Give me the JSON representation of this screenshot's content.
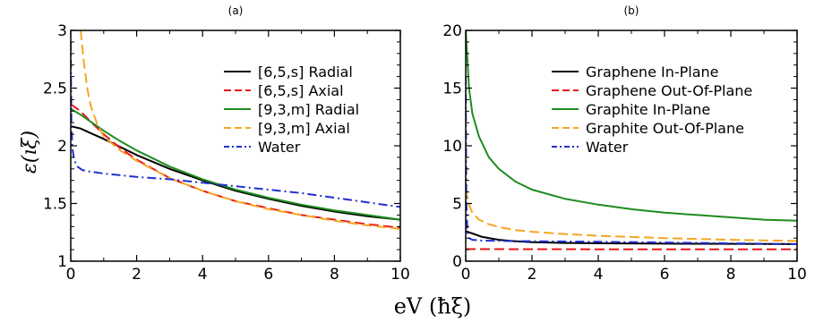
{
  "figure": {
    "ylabel": "ε(ıξ)",
    "xlabel": "eV (ħξ)"
  },
  "chart_data": [
    {
      "type": "line",
      "panel_label": "(a)",
      "xlim": [
        0,
        10
      ],
      "ylim": [
        1,
        3
      ],
      "xticks": [
        0,
        2,
        4,
        6,
        8,
        10
      ],
      "yticks": [
        1,
        1.5,
        2,
        2.5,
        3
      ],
      "ytick_labels": [
        "1",
        "1.5",
        "2",
        "2.5",
        "3"
      ],
      "legend_position": "top-right",
      "series": [
        {
          "name": "[6,5,s] Radial",
          "color": "#000000",
          "dash": "solid",
          "x": [
            0,
            0.3,
            0.6,
            1,
            1.5,
            2,
            3,
            4,
            5,
            6,
            7,
            8,
            9,
            10
          ],
          "y": [
            2.17,
            2.15,
            2.11,
            2.06,
            1.99,
            1.92,
            1.8,
            1.7,
            1.61,
            1.54,
            1.48,
            1.43,
            1.39,
            1.36
          ]
        },
        {
          "name": "[6,5,s] Axial",
          "color": "#e8191b",
          "dash": "dashed",
          "x": [
            0,
            0.3,
            0.6,
            1,
            1.5,
            2,
            3,
            4,
            5,
            6,
            7,
            8,
            9,
            10
          ],
          "y": [
            2.36,
            2.3,
            2.21,
            2.1,
            1.98,
            1.88,
            1.72,
            1.61,
            1.52,
            1.46,
            1.4,
            1.36,
            1.32,
            1.29
          ]
        },
        {
          "name": "[9,3,m] Radial",
          "color": "#1e8c1e",
          "dash": "solid",
          "x": [
            0,
            0.3,
            0.6,
            1,
            1.5,
            2,
            3,
            4,
            5,
            6,
            7,
            8,
            9,
            10
          ],
          "y": [
            2.32,
            2.27,
            2.21,
            2.13,
            2.04,
            1.96,
            1.82,
            1.71,
            1.62,
            1.55,
            1.49,
            1.44,
            1.4,
            1.36
          ]
        },
        {
          "name": "[9,3,m] Axial",
          "color": "#f5a623",
          "dash": "dashed",
          "x": [
            0.3,
            0.4,
            0.5,
            0.6,
            0.8,
            1,
            1.5,
            2,
            3,
            4,
            5,
            6,
            7,
            8,
            9,
            10
          ],
          "y": [
            3.0,
            2.72,
            2.5,
            2.35,
            2.19,
            2.08,
            1.96,
            1.87,
            1.72,
            1.61,
            1.52,
            1.45,
            1.4,
            1.35,
            1.31,
            1.28
          ]
        },
        {
          "name": "Water",
          "color": "#1f2fd0",
          "dash": "dashdot",
          "x": [
            0,
            0.02,
            0.05,
            0.1,
            0.2,
            0.35,
            0.5,
            1,
            2,
            3,
            4,
            5,
            6,
            7,
            8,
            9,
            10
          ],
          "y": [
            2.9,
            2.2,
            1.98,
            1.88,
            1.82,
            1.79,
            1.78,
            1.76,
            1.73,
            1.71,
            1.68,
            1.65,
            1.62,
            1.59,
            1.55,
            1.51,
            1.47
          ]
        }
      ]
    },
    {
      "type": "line",
      "panel_label": "(b)",
      "xlim": [
        0,
        10
      ],
      "ylim": [
        0,
        20
      ],
      "xticks": [
        0,
        2,
        4,
        6,
        8,
        10
      ],
      "yticks": [
        0,
        5,
        10,
        15,
        20
      ],
      "ytick_labels": [
        "0",
        "5",
        "10",
        "15",
        "20"
      ],
      "legend_position": "top-right",
      "series": [
        {
          "name": "Graphene In-Plane",
          "color": "#000000",
          "dash": "solid",
          "x": [
            0,
            0.2,
            0.5,
            1,
            1.5,
            2,
            3,
            4,
            6,
            8,
            10
          ],
          "y": [
            2.6,
            2.4,
            2.1,
            1.85,
            1.72,
            1.65,
            1.58,
            1.55,
            1.52,
            1.5,
            1.48
          ]
        },
        {
          "name": "Graphene Out-Of-Plane",
          "color": "#e8191b",
          "dash": "dashed",
          "x": [
            0,
            2,
            4,
            6,
            8,
            10
          ],
          "y": [
            1.05,
            1.04,
            1.03,
            1.03,
            1.02,
            1.02
          ]
        },
        {
          "name": "Graphite In-Plane",
          "color": "#1e8c1e",
          "dash": "solid",
          "x": [
            0,
            0.05,
            0.1,
            0.2,
            0.4,
            0.7,
            1,
            1.5,
            2,
            3,
            4,
            5,
            6,
            7,
            8,
            9,
            10
          ],
          "y": [
            20,
            17.5,
            15,
            12.8,
            10.8,
            9.0,
            8.0,
            6.9,
            6.2,
            5.4,
            4.9,
            4.5,
            4.2,
            4.0,
            3.8,
            3.6,
            3.5
          ]
        },
        {
          "name": "Graphite Out-Of-Plane",
          "color": "#f5a623",
          "dash": "dashed",
          "x": [
            0,
            0.05,
            0.1,
            0.2,
            0.4,
            0.7,
            1,
            1.5,
            2,
            3,
            4,
            6,
            8,
            10
          ],
          "y": [
            6.2,
            5.5,
            4.9,
            4.2,
            3.6,
            3.2,
            2.95,
            2.7,
            2.55,
            2.35,
            2.2,
            2.0,
            1.85,
            1.75
          ]
        },
        {
          "name": "Water",
          "color": "#1f2fd0",
          "dash": "dashdot",
          "x": [
            0,
            0.02,
            0.05,
            0.1,
            0.2,
            0.5,
            1,
            2,
            4,
            6,
            8,
            10
          ],
          "y": [
            16,
            5,
            2.5,
            2.0,
            1.85,
            1.78,
            1.76,
            1.73,
            1.68,
            1.62,
            1.55,
            1.47
          ]
        }
      ]
    }
  ]
}
